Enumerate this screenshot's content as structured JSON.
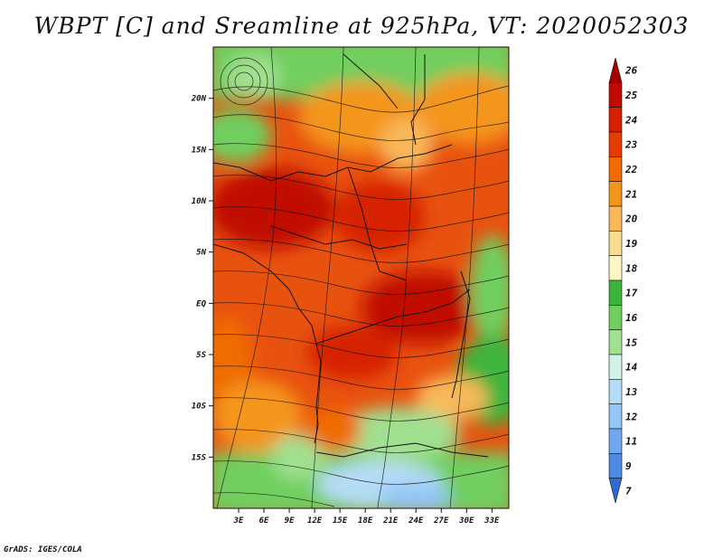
{
  "title": "WBPT [C] and Sreamline at 925hPa, VT: 2020052303",
  "credit": "GrADS: IGES/COLA",
  "map": {
    "lon_ticks": [
      "3E",
      "6E",
      "9E",
      "12E",
      "15E",
      "18E",
      "21E",
      "24E",
      "27E",
      "30E",
      "33E"
    ],
    "lat_ticks": [
      "20N",
      "15N",
      "10N",
      "5N",
      "EQ",
      "5S",
      "10S",
      "15S"
    ],
    "lon_range": [
      0,
      35
    ],
    "lat_range": [
      -20,
      25
    ]
  },
  "colorbar": {
    "labels": [
      "26",
      "25",
      "24",
      "23",
      "22",
      "21",
      "20",
      "19",
      "18",
      "17",
      "16",
      "15",
      "14",
      "13",
      "12",
      "11",
      "9",
      "7"
    ],
    "colors": [
      "#a50000",
      "#c00a00",
      "#d62000",
      "#e63c00",
      "#f06c00",
      "#f4951b",
      "#f8b85a",
      "#fadc90",
      "#fff6c6",
      "#3cb43c",
      "#6fcf5e",
      "#a0e090",
      "#d4f3e6",
      "#b6dcf8",
      "#93c5f5",
      "#6fa8ee",
      "#4e8ae6",
      "#2e6bd8"
    ]
  }
}
